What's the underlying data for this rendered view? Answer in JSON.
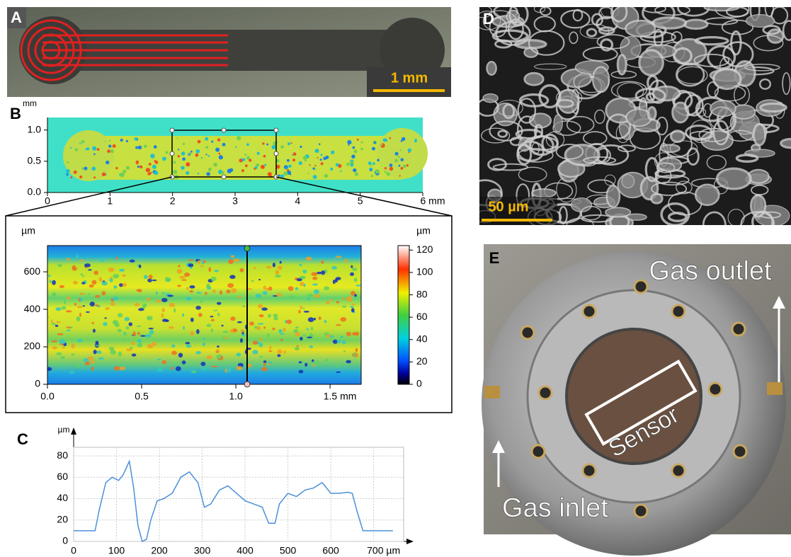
{
  "panel_a": {
    "label": "A",
    "scale_bar": "1 mm"
  },
  "panel_b": {
    "label": "B",
    "overview": {
      "unit": "mm",
      "xlim": [
        0,
        6
      ],
      "ylim": [
        0,
        1.2
      ],
      "xticks": [
        0,
        1,
        2,
        3,
        4,
        5,
        {
          "value": 6,
          "label": "6 mm"
        }
      ],
      "yticks": [
        {
          "value": 0,
          "label": "0.0"
        },
        {
          "value": 0.5,
          "label": "0.5"
        },
        {
          "value": 1,
          "label": "1.0"
        }
      ]
    },
    "zoom": {
      "y_unit": "µm",
      "xlim": [
        0,
        1.665
      ],
      "ylim": [
        0,
        740
      ],
      "xticks": [
        {
          "value": 0,
          "label": "0.0"
        },
        {
          "value": 0.5,
          "label": "0.5"
        },
        {
          "value": 1,
          "label": "1.0"
        },
        {
          "value": 1.5,
          "label": "1.5 mm"
        }
      ],
      "yticks": [
        0,
        200,
        400,
        600
      ]
    },
    "colorbar": {
      "unit": "µm",
      "lim": [
        0,
        124
      ],
      "ticks": [
        0,
        20,
        40,
        60,
        80,
        100,
        120
      ]
    }
  },
  "panel_c": {
    "label": "C",
    "chart": {
      "type": "line",
      "y_unit": "µm",
      "color": "#4a90d9",
      "grid": true,
      "x": [
        0,
        50,
        60,
        75,
        90,
        105,
        115,
        130,
        140,
        150,
        160,
        170,
        180,
        195,
        210,
        230,
        250,
        270,
        290,
        305,
        320,
        340,
        360,
        380,
        400,
        420,
        440,
        455,
        470,
        480,
        500,
        520,
        540,
        560,
        580,
        600,
        620,
        640,
        650,
        660,
        675,
        700,
        745
      ],
      "values": [
        10,
        10,
        30,
        55,
        60,
        57,
        62,
        75,
        50,
        15,
        0,
        2,
        20,
        38,
        40,
        45,
        60,
        65,
        55,
        32,
        35,
        48,
        52,
        45,
        38,
        35,
        32,
        17,
        17,
        35,
        45,
        42,
        48,
        50,
        55,
        45,
        45,
        46,
        45,
        30,
        10,
        10,
        10
      ],
      "xlim": [
        0,
        770
      ],
      "ylim": [
        0,
        88
      ],
      "xticks": [
        0,
        100,
        200,
        300,
        400,
        500,
        600,
        {
          "value": 700,
          "label": "700 µm"
        }
      ],
      "yticks": [
        0,
        20,
        40,
        60,
        80
      ]
    }
  },
  "panel_d": {
    "label": "D",
    "scale_bar": "50 µm"
  },
  "panel_e": {
    "label": "E",
    "outlet": "Gas outlet",
    "sensor": "Sensor",
    "inlet": "Gas inlet"
  }
}
